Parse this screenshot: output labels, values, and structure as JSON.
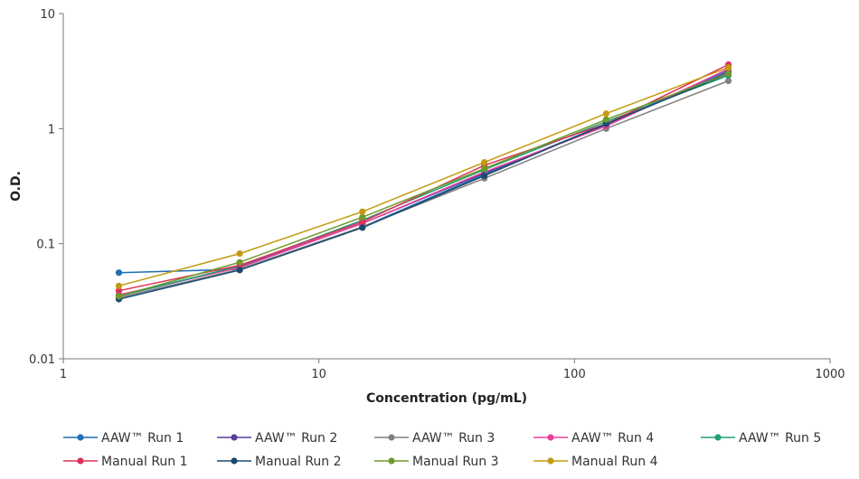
{
  "chart_data": {
    "type": "line",
    "xscale": "log",
    "yscale": "log",
    "xlabel": "Concentration (pg/mL)",
    "ylabel": "O.D.",
    "xlim": [
      1,
      1000
    ],
    "ylim": [
      0.01,
      10
    ],
    "xticks": [
      "1",
      "10",
      "100",
      "1000"
    ],
    "yticks": [
      "0.01",
      "0.1",
      "1",
      "10"
    ],
    "legend": "bottom",
    "grid": false,
    "x": [
      1.65,
      4.9,
      14.8,
      44.4,
      133,
      400
    ],
    "series": [
      {
        "name": "AAW™ Run 1",
        "color": "#1f6fb4",
        "values": [
          0.056,
          0.06,
          0.14,
          0.4,
          1.1,
          3.2
        ]
      },
      {
        "name": "AAW™ Run 2",
        "color": "#5a3d99",
        "values": [
          0.035,
          0.063,
          0.15,
          0.41,
          1.08,
          3.1
        ]
      },
      {
        "name": "AAW™ Run 3",
        "color": "#808080",
        "values": [
          0.034,
          0.06,
          0.14,
          0.37,
          1.0,
          2.6
        ]
      },
      {
        "name": "AAW™ Run 4",
        "color": "#e8409a",
        "values": [
          0.036,
          0.062,
          0.15,
          0.42,
          1.05,
          3.3
        ]
      },
      {
        "name": "AAW™ Run 5",
        "color": "#1fa07a",
        "values": [
          0.035,
          0.064,
          0.16,
          0.44,
          1.15,
          2.9
        ]
      },
      {
        "name": "Manual Run 1",
        "color": "#e0305a",
        "values": [
          0.039,
          0.065,
          0.155,
          0.48,
          1.1,
          3.6
        ]
      },
      {
        "name": "Manual Run 2",
        "color": "#1b4a6e",
        "values": [
          0.033,
          0.059,
          0.138,
          0.39,
          1.1,
          3.0
        ]
      },
      {
        "name": "Manual Run 3",
        "color": "#6f9a2a",
        "values": [
          0.035,
          0.069,
          0.17,
          0.45,
          1.2,
          3.0
        ]
      },
      {
        "name": "Manual Run 4",
        "color": "#c49a10",
        "values": [
          0.043,
          0.082,
          0.19,
          0.51,
          1.35,
          3.4
        ]
      }
    ]
  }
}
